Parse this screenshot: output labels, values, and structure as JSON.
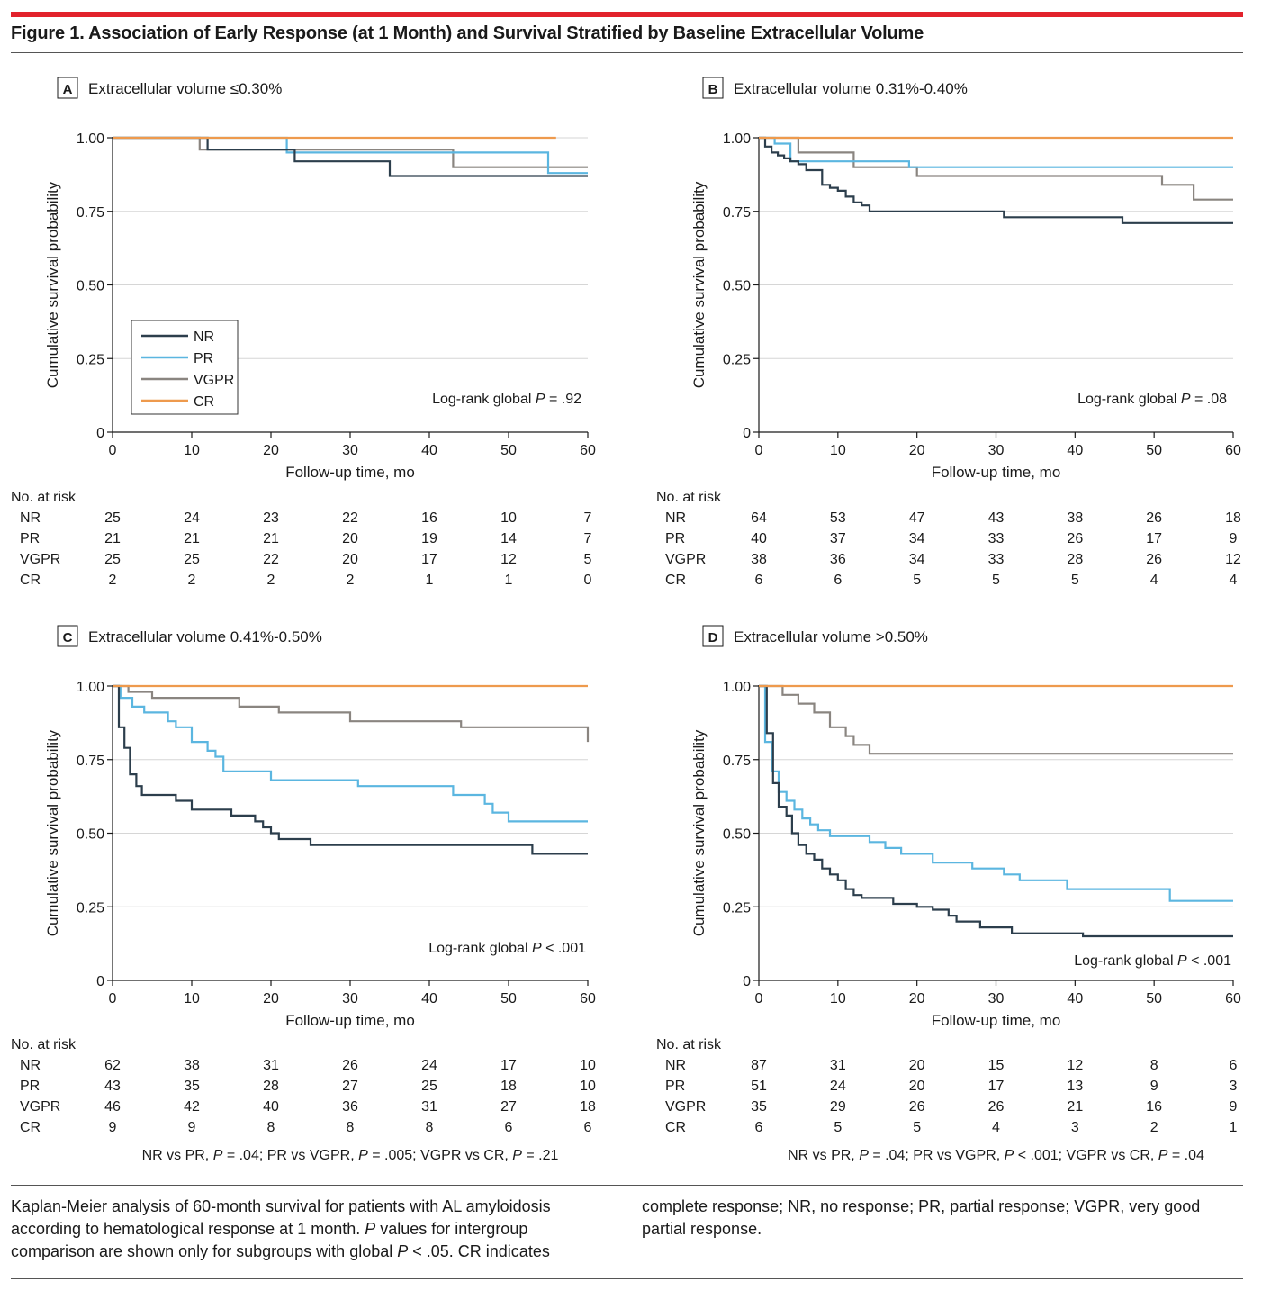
{
  "figure": {
    "title": "Figure 1. Association of Early Response (at 1 Month) and Survival Stratified by Baseline Extracellular Volume",
    "caption_left_parts": [
      "Kaplan-Meier analysis of 60-month survival for patients with AL amyloidosis according to hematological response at 1 month. ",
      "P",
      " values for intergroup comparison are shown only for subgroups with global ",
      "P",
      " < .05. CR indicates"
    ],
    "caption_right": "complete response; NR, no response; PR, partial response; VGPR, very good partial response."
  },
  "colors": {
    "NR": "#2c3e4c",
    "PR": "#5bb6e0",
    "VGPR": "#8a8580",
    "CR": "#ee9a4d",
    "accent": "#e2222c"
  },
  "chart_data": [
    {
      "type": "line",
      "step": true,
      "panel": "A",
      "title": "Extracellular volume ≤0.30%",
      "xlabel": "Follow-up time, mo",
      "ylabel": "Cumulative survival probability",
      "xlim": [
        0,
        60
      ],
      "ylim": [
        0,
        1
      ],
      "xticks": [
        0,
        10,
        20,
        30,
        40,
        50,
        60
      ],
      "yticks": [
        0,
        0.25,
        0.5,
        0.75,
        1.0
      ],
      "yticklabels": [
        "0",
        "0.25",
        "0.50",
        "0.75",
        "1.00"
      ],
      "legend": {
        "entries": [
          "NR",
          "PR",
          "VGPR",
          "CR"
        ],
        "position": "lower-left"
      },
      "annotation_parts": [
        "Log-rank global ",
        "P",
        " = .92"
      ],
      "series": [
        {
          "name": "NR",
          "x": [
            0,
            12,
            23,
            35,
            60
          ],
          "y": [
            1.0,
            0.96,
            0.92,
            0.87,
            0.87
          ]
        },
        {
          "name": "PR",
          "x": [
            0,
            22,
            55,
            60
          ],
          "y": [
            1.0,
            0.95,
            0.88,
            0.88
          ]
        },
        {
          "name": "VGPR",
          "x": [
            0,
            11,
            43,
            60
          ],
          "y": [
            1.0,
            0.96,
            0.9,
            0.9
          ]
        },
        {
          "name": "CR",
          "x": [
            0,
            56
          ],
          "y": [
            1.0,
            1.0
          ]
        }
      ],
      "risk_table": {
        "title": "No. at risk",
        "rows": [
          {
            "label": "NR",
            "values": [
              "25",
              "24",
              "23",
              "22",
              "16",
              "10",
              "7"
            ]
          },
          {
            "label": "PR",
            "values": [
              "21",
              "21",
              "21",
              "20",
              "19",
              "14",
              "7"
            ]
          },
          {
            "label": "VGPR",
            "values": [
              "25",
              "25",
              "22",
              "20",
              "17",
              "12",
              "5"
            ]
          },
          {
            "label": "CR",
            "values": [
              "2",
              "2",
              "2",
              "2",
              "1",
              "1",
              "0"
            ]
          }
        ]
      }
    },
    {
      "type": "line",
      "step": true,
      "panel": "B",
      "title": "Extracellular volume 0.31%-0.40%",
      "xlabel": "Follow-up time, mo",
      "ylabel": "Cumulative survival probability",
      "xlim": [
        0,
        60
      ],
      "ylim": [
        0,
        1
      ],
      "xticks": [
        0,
        10,
        20,
        30,
        40,
        50,
        60
      ],
      "yticks": [
        0,
        0.25,
        0.5,
        0.75,
        1.0
      ],
      "yticklabels": [
        "0",
        "0.25",
        "0.50",
        "0.75",
        "1.00"
      ],
      "annotation_parts": [
        "Log-rank global ",
        "P",
        " = .08"
      ],
      "series": [
        {
          "name": "NR",
          "x": [
            0,
            0.8,
            1.6,
            2.4,
            3.2,
            4.0,
            5.0,
            6.0,
            8.0,
            9.0,
            10.0,
            11.0,
            12.0,
            13.0,
            14.0,
            31.0,
            46.0,
            60.0
          ],
          "y": [
            1.0,
            0.97,
            0.95,
            0.94,
            0.93,
            0.92,
            0.91,
            0.89,
            0.84,
            0.83,
            0.82,
            0.8,
            0.78,
            0.77,
            0.75,
            0.73,
            0.71,
            0.71
          ]
        },
        {
          "name": "PR",
          "x": [
            0,
            2,
            4,
            19,
            60
          ],
          "y": [
            1.0,
            0.98,
            0.92,
            0.9,
            0.9
          ]
        },
        {
          "name": "VGPR",
          "x": [
            0,
            5,
            12,
            20,
            51,
            55,
            60
          ],
          "y": [
            1.0,
            0.95,
            0.9,
            0.87,
            0.84,
            0.79,
            0.79
          ]
        },
        {
          "name": "CR",
          "x": [
            0,
            60
          ],
          "y": [
            1.0,
            1.0
          ]
        }
      ],
      "risk_table": {
        "title": "No. at risk",
        "rows": [
          {
            "label": "NR",
            "values": [
              "64",
              "53",
              "47",
              "43",
              "38",
              "26",
              "18"
            ]
          },
          {
            "label": "PR",
            "values": [
              "40",
              "37",
              "34",
              "33",
              "26",
              "17",
              "9"
            ]
          },
          {
            "label": "VGPR",
            "values": [
              "38",
              "36",
              "34",
              "33",
              "28",
              "26",
              "12"
            ]
          },
          {
            "label": "CR",
            "values": [
              "6",
              "6",
              "5",
              "5",
              "5",
              "4",
              "4"
            ]
          }
        ]
      }
    },
    {
      "type": "line",
      "step": true,
      "panel": "C",
      "title": "Extracellular volume 0.41%-0.50%",
      "xlabel": "Follow-up time, mo",
      "ylabel": "Cumulative survival probability",
      "xlim": [
        0,
        60
      ],
      "ylim": [
        0,
        1
      ],
      "xticks": [
        0,
        10,
        20,
        30,
        40,
        50,
        60
      ],
      "yticks": [
        0,
        0.25,
        0.5,
        0.75,
        1.0
      ],
      "yticklabels": [
        "0",
        "0.25",
        "0.50",
        "0.75",
        "1.00"
      ],
      "annotation_parts": [
        "Log-rank global ",
        "P",
        " < .001"
      ],
      "pairwise_parts": [
        "NR vs PR, ",
        "P",
        " = .04; PR vs VGPR, ",
        "P",
        " = .005; VGPR vs CR, ",
        "P",
        " = .21"
      ],
      "series": [
        {
          "name": "NR",
          "x": [
            0,
            0.8,
            1.5,
            2.2,
            3.0,
            3.7,
            5.0,
            8.0,
            10.0,
            15.0,
            18.0,
            19.0,
            20.0,
            21.0,
            25.0,
            53.0,
            60.0
          ],
          "y": [
            1.0,
            0.86,
            0.79,
            0.7,
            0.66,
            0.63,
            0.63,
            0.61,
            0.58,
            0.56,
            0.54,
            0.52,
            0.5,
            0.48,
            0.46,
            0.43,
            0.43
          ]
        },
        {
          "name": "PR",
          "x": [
            0,
            1.0,
            2.5,
            4.0,
            7.0,
            8.0,
            10.0,
            12.0,
            13.0,
            14.0,
            20.0,
            31.0,
            43.0,
            47.0,
            48.0,
            50.0,
            60.0
          ],
          "y": [
            1.0,
            0.96,
            0.93,
            0.91,
            0.88,
            0.86,
            0.81,
            0.78,
            0.76,
            0.71,
            0.68,
            0.66,
            0.63,
            0.6,
            0.57,
            0.54,
            0.54
          ]
        },
        {
          "name": "VGPR",
          "x": [
            0,
            2,
            5,
            16,
            21,
            30,
            44,
            60
          ],
          "y": [
            1.0,
            0.98,
            0.96,
            0.93,
            0.91,
            0.88,
            0.86,
            0.81
          ]
        },
        {
          "name": "CR",
          "x": [
            0,
            60
          ],
          "y": [
            1.0,
            1.0
          ]
        }
      ],
      "risk_table": {
        "title": "No. at risk",
        "rows": [
          {
            "label": "NR",
            "values": [
              "62",
              "38",
              "31",
              "26",
              "24",
              "17",
              "10"
            ]
          },
          {
            "label": "PR",
            "values": [
              "43",
              "35",
              "28",
              "27",
              "25",
              "18",
              "10"
            ]
          },
          {
            "label": "VGPR",
            "values": [
              "46",
              "42",
              "40",
              "36",
              "31",
              "27",
              "18"
            ]
          },
          {
            "label": "CR",
            "values": [
              "9",
              "9",
              "8",
              "8",
              "8",
              "6",
              "6"
            ]
          }
        ]
      }
    },
    {
      "type": "line",
      "step": true,
      "panel": "D",
      "title": "Extracellular volume >0.50%",
      "xlabel": "Follow-up time, mo",
      "ylabel": "Cumulative survival probability",
      "xlim": [
        0,
        60
      ],
      "ylim": [
        0,
        1
      ],
      "xticks": [
        0,
        10,
        20,
        30,
        40,
        50,
        60
      ],
      "yticks": [
        0,
        0.25,
        0.5,
        0.75,
        1.0
      ],
      "yticklabels": [
        "0",
        "0.25",
        "0.50",
        "0.75",
        "1.00"
      ],
      "annotation_parts": [
        "Log-rank global ",
        "P",
        " < .001"
      ],
      "pairwise_parts": [
        "NR vs PR, ",
        "P",
        " = .04; PR vs VGPR, ",
        "P",
        " < .001; VGPR vs CR, ",
        "P",
        " = .04"
      ],
      "series": [
        {
          "name": "NR",
          "x": [
            0,
            1.0,
            1.8,
            2.5,
            3.5,
            4.2,
            5.0,
            6.0,
            7.0,
            8.0,
            9.0,
            10.0,
            11.0,
            12.0,
            13.0,
            17.0,
            20.0,
            22.0,
            24.0,
            25.0,
            28.0,
            32.0,
            41.0,
            60.0
          ],
          "y": [
            1.0,
            0.84,
            0.67,
            0.59,
            0.56,
            0.5,
            0.46,
            0.43,
            0.41,
            0.38,
            0.36,
            0.34,
            0.31,
            0.29,
            0.28,
            0.26,
            0.25,
            0.24,
            0.22,
            0.2,
            0.18,
            0.16,
            0.15,
            0.15
          ]
        },
        {
          "name": "PR",
          "x": [
            0,
            0.8,
            1.6,
            2.5,
            3.5,
            4.5,
            5.5,
            6.5,
            7.5,
            9.0,
            14.0,
            16.0,
            18.0,
            22.0,
            27.0,
            31.0,
            33.0,
            39.0,
            52.0,
            60.0
          ],
          "y": [
            1.0,
            0.81,
            0.71,
            0.64,
            0.61,
            0.58,
            0.55,
            0.53,
            0.51,
            0.49,
            0.47,
            0.45,
            0.43,
            0.4,
            0.38,
            0.36,
            0.34,
            0.31,
            0.27,
            0.27
          ]
        },
        {
          "name": "VGPR",
          "x": [
            0,
            3,
            5,
            7,
            9,
            11,
            12,
            14,
            15,
            60
          ],
          "y": [
            1.0,
            0.97,
            0.94,
            0.91,
            0.86,
            0.83,
            0.8,
            0.77,
            0.77,
            0.77
          ]
        },
        {
          "name": "CR",
          "x": [
            0,
            60
          ],
          "y": [
            1.0,
            1.0
          ]
        }
      ],
      "risk_table": {
        "title": "No. at risk",
        "rows": [
          {
            "label": "NR",
            "values": [
              "87",
              "31",
              "20",
              "15",
              "12",
              "8",
              "6"
            ]
          },
          {
            "label": "PR",
            "values": [
              "51",
              "24",
              "20",
              "17",
              "13",
              "9",
              "3"
            ]
          },
          {
            "label": "VGPR",
            "values": [
              "35",
              "29",
              "26",
              "26",
              "21",
              "16",
              "9"
            ]
          },
          {
            "label": "CR",
            "values": [
              "6",
              "5",
              "5",
              "4",
              "3",
              "2",
              "1"
            ]
          }
        ]
      }
    }
  ]
}
